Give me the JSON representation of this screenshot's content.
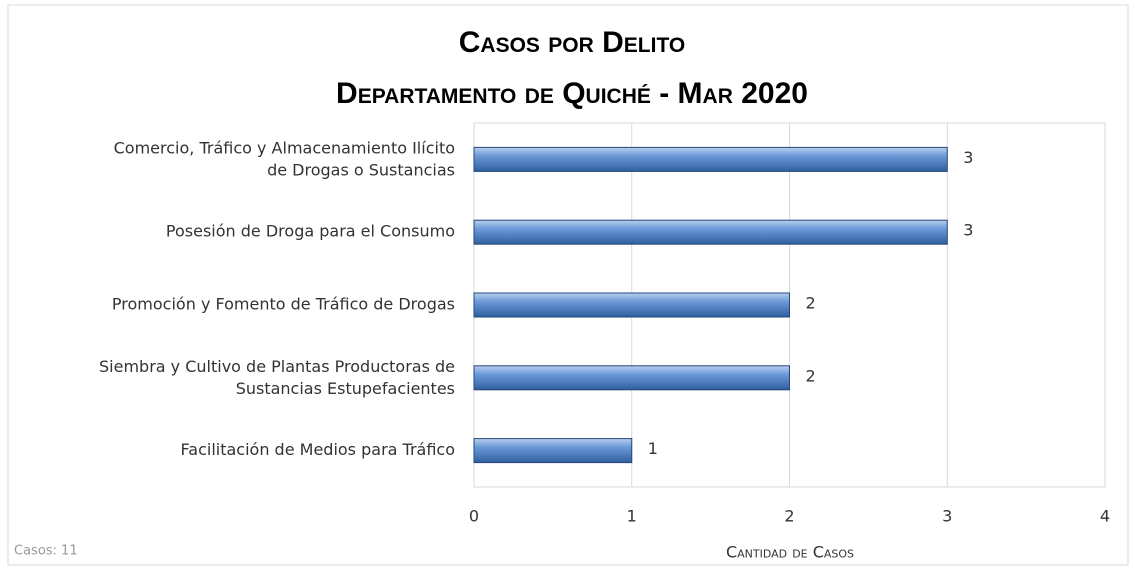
{
  "chart_data": {
    "type": "barh",
    "title": [
      "Casos por Delito",
      "Departamento de Quiché - Mar 2020"
    ],
    "categories": [
      "Comercio, Tráfico y Almacenamiento Ilícito\nde Drogas o Sustancias",
      "Posesión de Droga para el Consumo",
      "Promoción y Fomento de Tráfico de Drogas",
      "Siembra y Cultivo de Plantas Productoras de\nSustancias Estupefacientes",
      "Facilitación de Medios para Tráfico"
    ],
    "values": [
      3,
      3,
      2,
      2,
      1
    ],
    "color": "#4f81bd",
    "xlim": [
      0,
      4
    ],
    "xticks": [
      0,
      1,
      2,
      3,
      4
    ],
    "grid": true,
    "x_label": "Cantidad de Casos",
    "annotation": "Casos: 11"
  }
}
